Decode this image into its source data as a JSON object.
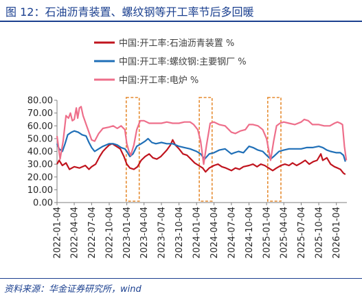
{
  "figure": {
    "title": "图 12：石油沥青装置、螺纹钢等开工率节后多回暖",
    "source": "资料来源：华金证券研究所，wind"
  },
  "chart_data": {
    "type": "line",
    "ylim": [
      0,
      80
    ],
    "yticks": [
      "0.00",
      "10.00",
      "20.00",
      "30.00",
      "40.00",
      "50.00",
      "60.00",
      "70.00",
      "80.00"
    ],
    "xlim": [
      "2022-01-04",
      "2026-02-28"
    ],
    "xticks": [
      "2022-01-04",
      "2022-04-04",
      "2022-07-04",
      "2022-10-04",
      "2023-01-04",
      "2023-04-04",
      "2023-07-04",
      "2023-10-04",
      "2024-01-04",
      "2024-04-04",
      "2024-07-04",
      "2024-10-04",
      "2025-01-04",
      "2025-04-04",
      "2025-07-04",
      "2025-10-04",
      "2026-01-04"
    ],
    "grid": false,
    "legend_position": "top",
    "highlights": [
      {
        "start": "2023-01-01",
        "end": "2023-03-10"
      },
      {
        "start": "2024-01-18",
        "end": "2024-03-25"
      },
      {
        "start": "2025-01-10",
        "end": "2025-03-20"
      }
    ],
    "highlight_color": "#e58a2e",
    "series": [
      {
        "name": "中国:开工率:石油沥青装置 %",
        "color": "#c0141e",
        "points": [
          [
            "2022-01-04",
            30
          ],
          [
            "2022-01-15",
            33
          ],
          [
            "2022-02-01",
            29
          ],
          [
            "2022-02-20",
            31
          ],
          [
            "2022-03-10",
            26
          ],
          [
            "2022-04-04",
            28
          ],
          [
            "2022-05-01",
            27
          ],
          [
            "2022-06-01",
            29
          ],
          [
            "2022-06-20",
            26
          ],
          [
            "2022-07-04",
            28
          ],
          [
            "2022-07-25",
            30
          ],
          [
            "2022-08-15",
            36
          ],
          [
            "2022-09-01",
            40
          ],
          [
            "2022-09-20",
            43
          ],
          [
            "2022-10-04",
            45
          ],
          [
            "2022-10-20",
            46
          ],
          [
            "2022-11-10",
            44
          ],
          [
            "2022-12-01",
            42
          ],
          [
            "2022-12-20",
            36
          ],
          [
            "2023-01-04",
            30
          ],
          [
            "2023-01-20",
            27
          ],
          [
            "2023-02-10",
            26
          ],
          [
            "2023-03-01",
            28
          ],
          [
            "2023-03-20",
            33
          ],
          [
            "2023-04-10",
            36
          ],
          [
            "2023-05-01",
            38
          ],
          [
            "2023-05-20",
            35
          ],
          [
            "2023-06-10",
            34
          ],
          [
            "2023-07-01",
            36
          ],
          [
            "2023-08-01",
            41
          ],
          [
            "2023-08-20",
            45
          ],
          [
            "2023-09-01",
            49
          ],
          [
            "2023-09-15",
            45
          ],
          [
            "2023-10-04",
            42
          ],
          [
            "2023-10-25",
            38
          ],
          [
            "2023-11-15",
            37
          ],
          [
            "2023-12-05",
            34
          ],
          [
            "2023-12-25",
            31
          ],
          [
            "2024-01-15",
            29
          ],
          [
            "2024-02-05",
            27
          ],
          [
            "2024-02-20",
            24
          ],
          [
            "2024-03-10",
            27
          ],
          [
            "2024-04-04",
            29
          ],
          [
            "2024-04-25",
            30
          ],
          [
            "2024-05-15",
            28
          ],
          [
            "2024-06-05",
            27
          ],
          [
            "2024-07-04",
            25
          ],
          [
            "2024-07-25",
            27
          ],
          [
            "2024-08-15",
            26
          ],
          [
            "2024-09-05",
            28
          ],
          [
            "2024-10-04",
            29
          ],
          [
            "2024-10-25",
            30
          ],
          [
            "2024-11-15",
            28
          ],
          [
            "2024-12-05",
            30
          ],
          [
            "2024-12-25",
            29
          ],
          [
            "2025-01-15",
            27
          ],
          [
            "2025-02-05",
            25
          ],
          [
            "2025-02-25",
            27
          ],
          [
            "2025-03-20",
            29
          ],
          [
            "2025-04-10",
            30
          ],
          [
            "2025-05-01",
            29
          ],
          [
            "2025-05-20",
            31
          ],
          [
            "2025-06-10",
            29
          ],
          [
            "2025-07-04",
            31
          ],
          [
            "2025-07-25",
            33
          ],
          [
            "2025-08-15",
            30
          ],
          [
            "2025-09-05",
            32
          ],
          [
            "2025-09-25",
            33
          ],
          [
            "2025-10-15",
            38
          ],
          [
            "2025-10-25",
            33
          ],
          [
            "2025-11-15",
            35
          ],
          [
            "2025-12-05",
            30
          ],
          [
            "2025-12-25",
            28
          ],
          [
            "2026-01-10",
            27
          ],
          [
            "2026-01-25",
            26
          ],
          [
            "2026-02-10",
            23
          ],
          [
            "2026-02-20",
            22
          ]
        ]
      },
      {
        "name": "中国:开工率:螺纹钢:主要钢厂 %",
        "color": "#1f6fb7",
        "points": [
          [
            "2022-01-04",
            46
          ],
          [
            "2022-01-15",
            42
          ],
          [
            "2022-02-01",
            40
          ],
          [
            "2022-02-15",
            46
          ],
          [
            "2022-03-01",
            53
          ],
          [
            "2022-03-20",
            55
          ],
          [
            "2022-04-04",
            56
          ],
          [
            "2022-04-25",
            55
          ],
          [
            "2022-05-15",
            53
          ],
          [
            "2022-06-05",
            52
          ],
          [
            "2022-06-20",
            47
          ],
          [
            "2022-07-04",
            43
          ],
          [
            "2022-07-20",
            40
          ],
          [
            "2022-08-10",
            42
          ],
          [
            "2022-09-01",
            44
          ],
          [
            "2022-10-04",
            46
          ],
          [
            "2022-10-25",
            46
          ],
          [
            "2022-11-15",
            45
          ],
          [
            "2022-12-05",
            43
          ],
          [
            "2022-12-25",
            42
          ],
          [
            "2023-01-04",
            40
          ],
          [
            "2023-01-20",
            36
          ],
          [
            "2023-02-05",
            38
          ],
          [
            "2023-02-25",
            44
          ],
          [
            "2023-03-20",
            46
          ],
          [
            "2023-04-10",
            48
          ],
          [
            "2023-04-25",
            50
          ],
          [
            "2023-05-15",
            47
          ],
          [
            "2023-06-05",
            46
          ],
          [
            "2023-07-04",
            47
          ],
          [
            "2023-08-01",
            46
          ],
          [
            "2023-09-01",
            46
          ],
          [
            "2023-10-04",
            44
          ],
          [
            "2023-11-01",
            43
          ],
          [
            "2023-12-01",
            42
          ],
          [
            "2024-01-04",
            40
          ],
          [
            "2024-01-25",
            38
          ],
          [
            "2024-02-15",
            34
          ],
          [
            "2024-03-10",
            38
          ],
          [
            "2024-04-04",
            39
          ],
          [
            "2024-05-01",
            41
          ],
          [
            "2024-06-01",
            42
          ],
          [
            "2024-07-04",
            38
          ],
          [
            "2024-07-20",
            39
          ],
          [
            "2024-08-10",
            40
          ],
          [
            "2024-09-05",
            39
          ],
          [
            "2024-10-04",
            44
          ],
          [
            "2024-10-25",
            43
          ],
          [
            "2024-11-20",
            41
          ],
          [
            "2024-12-15",
            40
          ],
          [
            "2025-01-04",
            37
          ],
          [
            "2025-01-25",
            34
          ],
          [
            "2025-02-10",
            36
          ],
          [
            "2025-03-10",
            40
          ],
          [
            "2025-04-04",
            41
          ],
          [
            "2025-05-01",
            42
          ],
          [
            "2025-06-01",
            42
          ],
          [
            "2025-07-04",
            42
          ],
          [
            "2025-08-01",
            43
          ],
          [
            "2025-09-01",
            43
          ],
          [
            "2025-10-04",
            44
          ],
          [
            "2025-10-25",
            43
          ],
          [
            "2025-11-15",
            41
          ],
          [
            "2025-12-05",
            40
          ],
          [
            "2026-01-04",
            39
          ],
          [
            "2026-01-25",
            39
          ],
          [
            "2026-02-10",
            37
          ],
          [
            "2026-02-20",
            32
          ]
        ]
      },
      {
        "name": "中国:开工率:电炉 %",
        "color": "#ee6e8a",
        "points": [
          [
            "2022-01-04",
            52
          ],
          [
            "2022-01-20",
            34
          ],
          [
            "2022-02-05",
            48
          ],
          [
            "2022-02-20",
            68
          ],
          [
            "2022-03-05",
            66
          ],
          [
            "2022-03-15",
            70
          ],
          [
            "2022-03-25",
            64
          ],
          [
            "2022-04-04",
            65
          ],
          [
            "2022-04-15",
            74
          ],
          [
            "2022-04-22",
            66
          ],
          [
            "2022-05-01",
            74
          ],
          [
            "2022-05-10",
            75
          ],
          [
            "2022-05-20",
            68
          ],
          [
            "2022-06-01",
            63
          ],
          [
            "2022-06-15",
            57
          ],
          [
            "2022-07-04",
            49
          ],
          [
            "2022-07-20",
            48
          ],
          [
            "2022-08-10",
            54
          ],
          [
            "2022-09-01",
            58
          ],
          [
            "2022-10-04",
            59
          ],
          [
            "2022-10-25",
            60
          ],
          [
            "2022-11-15",
            58
          ],
          [
            "2022-12-05",
            60
          ],
          [
            "2022-12-25",
            57
          ],
          [
            "2023-01-04",
            46
          ],
          [
            "2023-01-15",
            40
          ],
          [
            "2023-01-25",
            37
          ],
          [
            "2023-02-10",
            45
          ],
          [
            "2023-02-25",
            57
          ],
          [
            "2023-03-15",
            64
          ],
          [
            "2023-04-04",
            64
          ],
          [
            "2023-05-01",
            62
          ],
          [
            "2023-06-01",
            62
          ],
          [
            "2023-07-04",
            62
          ],
          [
            "2023-08-01",
            63
          ],
          [
            "2023-09-01",
            62
          ],
          [
            "2023-10-04",
            62
          ],
          [
            "2023-11-01",
            63
          ],
          [
            "2023-12-01",
            63
          ],
          [
            "2023-12-20",
            61
          ],
          [
            "2024-01-10",
            57
          ],
          [
            "2024-01-25",
            48
          ],
          [
            "2024-02-10",
            30
          ],
          [
            "2024-02-25",
            45
          ],
          [
            "2024-03-15",
            62
          ],
          [
            "2024-04-04",
            63
          ],
          [
            "2024-05-01",
            61
          ],
          [
            "2024-06-01",
            60
          ],
          [
            "2024-07-04",
            55
          ],
          [
            "2024-07-25",
            54
          ],
          [
            "2024-08-20",
            56
          ],
          [
            "2024-09-15",
            57
          ],
          [
            "2024-10-04",
            61
          ],
          [
            "2024-10-25",
            61
          ],
          [
            "2024-11-20",
            60
          ],
          [
            "2024-12-15",
            57
          ],
          [
            "2025-01-04",
            50
          ],
          [
            "2025-01-25",
            33
          ],
          [
            "2025-02-10",
            48
          ],
          [
            "2025-02-25",
            60
          ],
          [
            "2025-03-15",
            62
          ],
          [
            "2025-04-04",
            63
          ],
          [
            "2025-05-01",
            62
          ],
          [
            "2025-06-01",
            61
          ],
          [
            "2025-07-04",
            63
          ],
          [
            "2025-07-20",
            65
          ],
          [
            "2025-08-10",
            64
          ],
          [
            "2025-09-01",
            61
          ],
          [
            "2025-10-04",
            61
          ],
          [
            "2025-11-01",
            60
          ],
          [
            "2025-12-01",
            60
          ],
          [
            "2025-12-25",
            62
          ],
          [
            "2026-01-10",
            63
          ],
          [
            "2026-01-25",
            62
          ],
          [
            "2026-02-05",
            61
          ],
          [
            "2026-02-15",
            44
          ],
          [
            "2026-02-25",
            33
          ]
        ]
      }
    ]
  }
}
